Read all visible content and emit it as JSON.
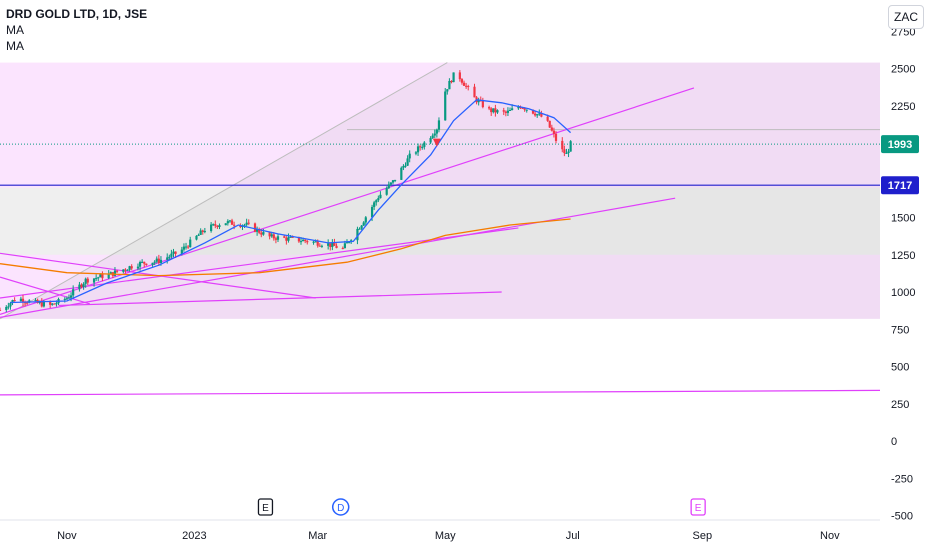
{
  "header": {
    "title": "DRD GOLD LTD, 1D, JSE",
    "indicators": [
      "MA",
      "MA"
    ],
    "currency": "ZAC"
  },
  "chart_data": {
    "type": "candlestick",
    "price_axis": {
      "ticks": [
        2750,
        2500,
        2250,
        1500,
        1250,
        1000,
        750,
        500,
        250,
        0,
        -250,
        -500
      ],
      "range": [
        -530,
        2960
      ]
    },
    "time_axis": {
      "ticks": [
        {
          "label": "Nov",
          "date": "2022-11-01"
        },
        {
          "label": "2023",
          "date": "2023-01-01"
        },
        {
          "label": "Mar",
          "date": "2023-03-01"
        },
        {
          "label": "May",
          "date": "2023-05-01"
        },
        {
          "label": "Jul",
          "date": "2023-07-01"
        },
        {
          "label": "Sep",
          "date": "2023-09-01"
        },
        {
          "label": "Nov",
          "date": "2023-11-01"
        }
      ],
      "range": [
        "2022-09-30",
        "2023-11-25"
      ]
    },
    "price_labels": [
      {
        "value": 1993,
        "label": "1993",
        "color": "#089981"
      },
      {
        "value": 1717,
        "label": "1717",
        "color": "#1f1fcc"
      }
    ],
    "price_path": [
      {
        "date": "2022-09-30",
        "price": 880
      },
      {
        "date": "2022-10-08",
        "price": 960
      },
      {
        "date": "2022-10-16",
        "price": 930
      },
      {
        "date": "2022-10-24",
        "price": 910
      },
      {
        "date": "2022-11-01",
        "price": 960
      },
      {
        "date": "2022-11-10",
        "price": 1080
      },
      {
        "date": "2022-11-22",
        "price": 1120
      },
      {
        "date": "2022-12-05",
        "price": 1190
      },
      {
        "date": "2022-12-15",
        "price": 1210
      },
      {
        "date": "2022-12-25",
        "price": 1270
      },
      {
        "date": "2023-01-06",
        "price": 1420
      },
      {
        "date": "2023-01-15",
        "price": 1470
      },
      {
        "date": "2023-01-26",
        "price": 1450
      },
      {
        "date": "2023-02-06",
        "price": 1370
      },
      {
        "date": "2023-02-20",
        "price": 1350
      },
      {
        "date": "2023-03-06",
        "price": 1320
      },
      {
        "date": "2023-03-13",
        "price": 1290
      },
      {
        "date": "2023-03-22",
        "price": 1460
      },
      {
        "date": "2023-03-30",
        "price": 1640
      },
      {
        "date": "2023-04-06",
        "price": 1740
      },
      {
        "date": "2023-04-14",
        "price": 1910
      },
      {
        "date": "2023-04-21",
        "price": 2000
      },
      {
        "date": "2023-04-27",
        "price": 2100
      },
      {
        "date": "2023-05-01",
        "price": 2350
      },
      {
        "date": "2023-05-06",
        "price": 2480
      },
      {
        "date": "2023-05-10",
        "price": 2400
      },
      {
        "date": "2023-05-15",
        "price": 2300
      },
      {
        "date": "2023-05-22",
        "price": 2220
      },
      {
        "date": "2023-05-30",
        "price": 2200
      },
      {
        "date": "2023-06-06",
        "price": 2250
      },
      {
        "date": "2023-06-12",
        "price": 2210
      },
      {
        "date": "2023-06-18",
        "price": 2160
      },
      {
        "date": "2023-06-22",
        "price": 2050
      },
      {
        "date": "2023-06-25",
        "price": 1960
      },
      {
        "date": "2023-06-28",
        "price": 1925
      },
      {
        "date": "2023-06-30",
        "price": 1993
      }
    ],
    "ma_short": [
      {
        "date": "2022-10-05",
        "price": 930
      },
      {
        "date": "2022-11-01",
        "price": 940
      },
      {
        "date": "2022-11-20",
        "price": 1060
      },
      {
        "date": "2022-12-15",
        "price": 1180
      },
      {
        "date": "2023-01-06",
        "price": 1330
      },
      {
        "date": "2023-01-22",
        "price": 1450
      },
      {
        "date": "2023-02-10",
        "price": 1390
      },
      {
        "date": "2023-03-06",
        "price": 1330
      },
      {
        "date": "2023-03-18",
        "price": 1340
      },
      {
        "date": "2023-03-30",
        "price": 1550
      },
      {
        "date": "2023-04-10",
        "price": 1720
      },
      {
        "date": "2023-04-24",
        "price": 1920
      },
      {
        "date": "2023-05-05",
        "price": 2150
      },
      {
        "date": "2023-05-16",
        "price": 2290
      },
      {
        "date": "2023-05-28",
        "price": 2270
      },
      {
        "date": "2023-06-10",
        "price": 2230
      },
      {
        "date": "2023-06-22",
        "price": 2170
      },
      {
        "date": "2023-06-30",
        "price": 2070
      }
    ],
    "ma_long": [
      {
        "date": "2022-09-30",
        "price": 1190
      },
      {
        "date": "2022-11-01",
        "price": 1130
      },
      {
        "date": "2022-12-15",
        "price": 1110
      },
      {
        "date": "2023-02-01",
        "price": 1130
      },
      {
        "date": "2023-03-15",
        "price": 1200
      },
      {
        "date": "2023-04-10",
        "price": 1290
      },
      {
        "date": "2023-05-01",
        "price": 1380
      },
      {
        "date": "2023-06-01",
        "price": 1450
      },
      {
        "date": "2023-06-30",
        "price": 1490
      }
    ],
    "events": [
      {
        "label": "E",
        "date": "2023-02-04",
        "kind": "earnings"
      },
      {
        "label": "D",
        "date": "2023-03-12",
        "kind": "dividend"
      },
      {
        "label": "E",
        "date": "2023-08-30",
        "kind": "earnings"
      }
    ],
    "colors": {
      "up": "#089981",
      "down": "#f23645",
      "ma_short": "#2962ff",
      "ma_long": "#f57c00",
      "drawing": "#e040fb",
      "hline": "#1f1fcc",
      "zone_fill": "#e040fb"
    }
  }
}
